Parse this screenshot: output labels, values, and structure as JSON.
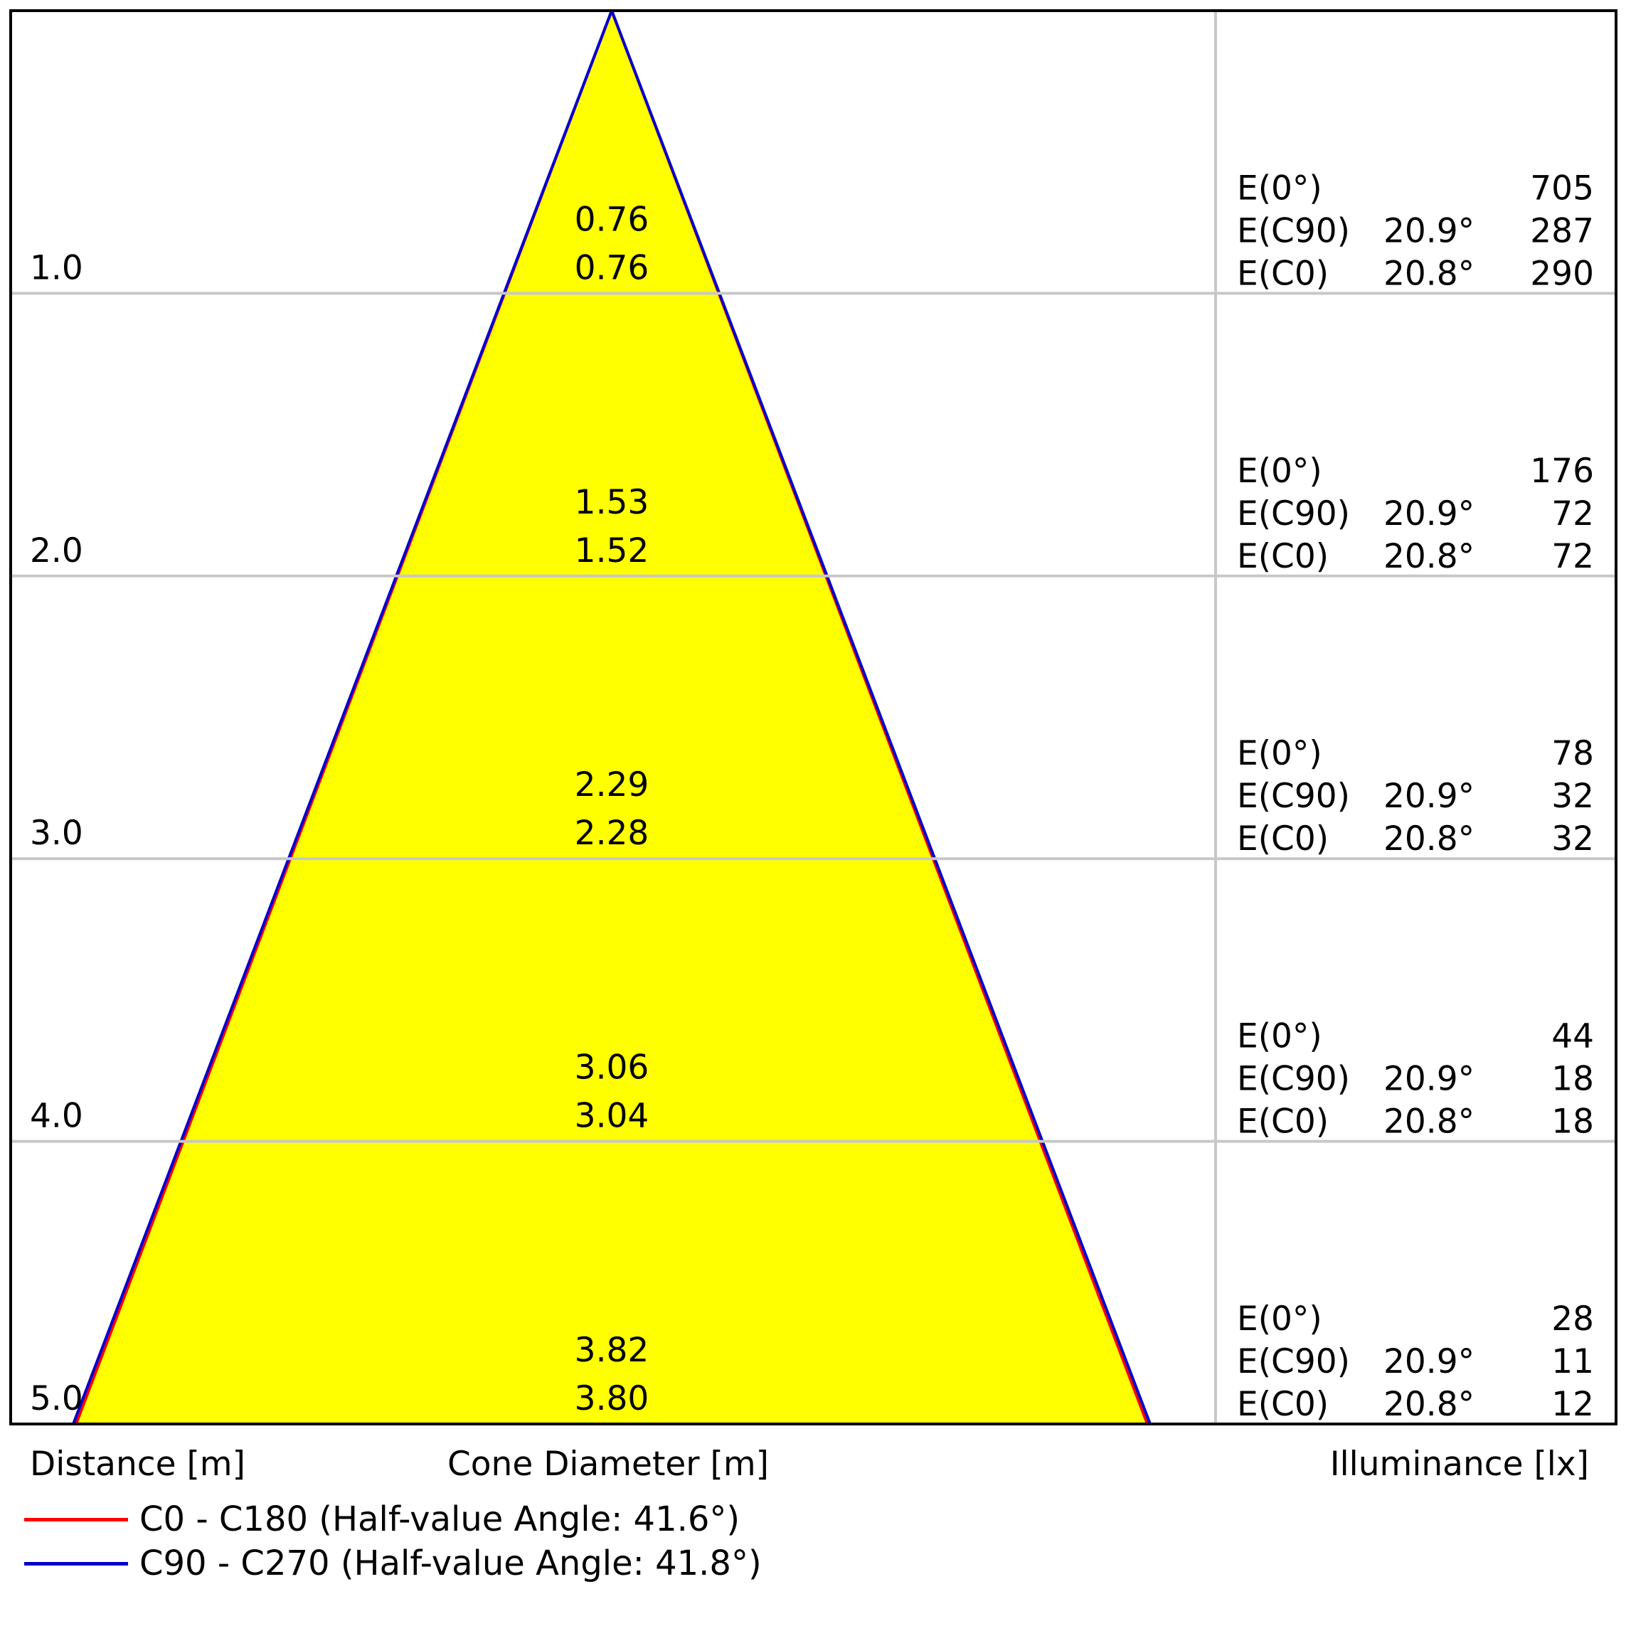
{
  "chart_data": {
    "type": "cone-diagram",
    "colors": {
      "cone_fill": "#FFFF00",
      "c0_line": "#FF0000",
      "c90_line": "#0000CC",
      "grid": "#C8C8C8",
      "frame": "#000000"
    },
    "ylim": [
      0,
      5.0
    ],
    "half_angle_c0_deg": 20.8,
    "half_angle_c90_deg": 20.9,
    "distance_labels": [
      "1.0",
      "2.0",
      "3.0",
      "4.0",
      "5.0"
    ],
    "rows": [
      {
        "distance": 1.0,
        "cone_c90": "0.76",
        "cone_c0": "0.76",
        "e0_label": "E(0°)",
        "e0": "705",
        "ec90_label": "E(C90)",
        "ec90_angle": "20.9°",
        "ec90": "287",
        "ec0_label": "E(C0)",
        "ec0_angle": "20.8°",
        "ec0": "290"
      },
      {
        "distance": 2.0,
        "cone_c90": "1.53",
        "cone_c0": "1.52",
        "e0_label": "E(0°)",
        "e0": "176",
        "ec90_label": "E(C90)",
        "ec90_angle": "20.9°",
        "ec90": "72",
        "ec0_label": "E(C0)",
        "ec0_angle": "20.8°",
        "ec0": "72"
      },
      {
        "distance": 3.0,
        "cone_c90": "2.29",
        "cone_c0": "2.28",
        "e0_label": "E(0°)",
        "e0": "78",
        "ec90_label": "E(C90)",
        "ec90_angle": "20.9°",
        "ec90": "32",
        "ec0_label": "E(C0)",
        "ec0_angle": "20.8°",
        "ec0": "32"
      },
      {
        "distance": 4.0,
        "cone_c90": "3.06",
        "cone_c0": "3.04",
        "e0_label": "E(0°)",
        "e0": "44",
        "ec90_label": "E(C90)",
        "ec90_angle": "20.9°",
        "ec90": "18",
        "ec0_label": "E(C0)",
        "ec0_angle": "20.8°",
        "ec0": "18"
      },
      {
        "distance": 5.0,
        "cone_c90": "3.82",
        "cone_c0": "3.80",
        "e0_label": "E(0°)",
        "e0": "28",
        "ec90_label": "E(C90)",
        "ec90_angle": "20.9°",
        "ec90": "11",
        "ec0_label": "E(C0)",
        "ec0_angle": "20.8°",
        "ec0": "12"
      }
    ],
    "axis_labels": {
      "distance": "Distance [m]",
      "cone": "Cone Diameter [m]",
      "illuminance": "Illuminance [lx]"
    },
    "legend": [
      {
        "label": "C0 - C180 (Half-value Angle: 41.6°)",
        "color": "#FF0000"
      },
      {
        "label": "C90 - C270 (Half-value Angle: 41.8°)",
        "color": "#0000CC"
      }
    ]
  }
}
